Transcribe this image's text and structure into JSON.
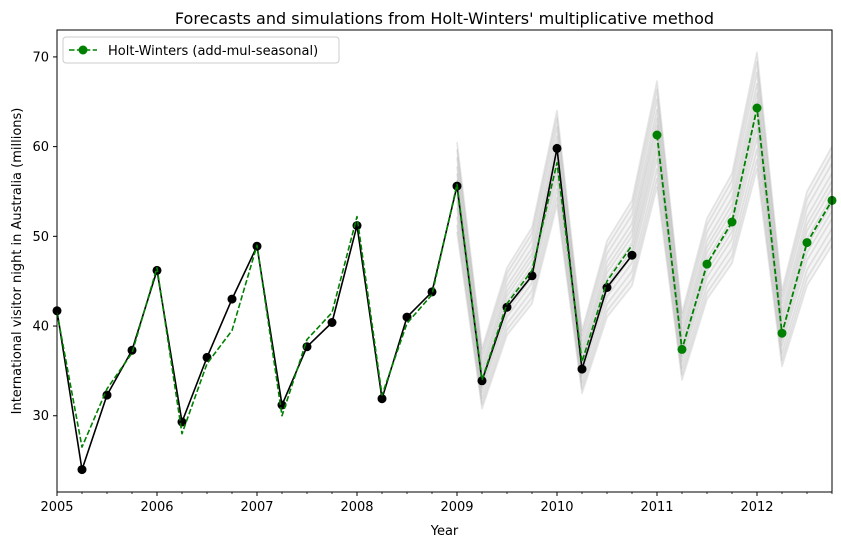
{
  "chart_data": {
    "type": "line",
    "title": "Forecasts and simulations from Holt-Winters' multiplicative method",
    "xlabel": "Year",
    "ylabel": "International visitor night in Australia (millions)",
    "xlim": [
      2005,
      2012.75
    ],
    "ylim": [
      21.5,
      73
    ],
    "x_ticks": [
      2005,
      2006,
      2007,
      2008,
      2009,
      2010,
      2011,
      2012
    ],
    "x_tick_labels": [
      "2005",
      "2006",
      "2007",
      "2008",
      "2009",
      "2010",
      "2011",
      "2012"
    ],
    "y_ticks": [
      30,
      40,
      50,
      60,
      70
    ],
    "y_tick_labels": [
      "30",
      "40",
      "50",
      "60",
      "70"
    ],
    "grid": false,
    "legend": {
      "placement": "top-left",
      "entries": [
        "Holt-Winters (add-mul-seasonal)"
      ]
    },
    "series": [
      {
        "role": "observed",
        "color": "#000000",
        "style": "solid-with-markers",
        "x": [
          2005,
          2005.25,
          2005.5,
          2005.75,
          2006,
          2006.25,
          2006.5,
          2006.75,
          2007,
          2007.25,
          2007.5,
          2007.75,
          2008,
          2008.25,
          2008.5,
          2008.75,
          2009,
          2009.25,
          2009.5,
          2009.75,
          2010,
          2010.25,
          2010.5,
          2010.75
        ],
        "values": [
          41.7,
          24.0,
          32.3,
          37.3,
          46.2,
          29.3,
          36.5,
          43.0,
          48.9,
          31.2,
          37.7,
          40.4,
          51.2,
          31.9,
          41.0,
          43.8,
          55.6,
          33.9,
          42.1,
          45.6,
          59.8,
          35.2,
          44.3,
          47.9
        ]
      },
      {
        "role": "fitted",
        "name": "Holt-Winters (add-mul-seasonal)",
        "color": "#008000",
        "style": "dashed",
        "x": [
          2005,
          2005.25,
          2005.5,
          2005.75,
          2006,
          2006.25,
          2006.5,
          2006.75,
          2007,
          2007.25,
          2007.5,
          2007.75,
          2008,
          2008.25,
          2008.5,
          2008.75,
          2009,
          2009.25,
          2009.5,
          2009.75,
          2010,
          2010.25,
          2010.5,
          2010.75
        ],
        "values": [
          41.5,
          26.5,
          33.0,
          37.0,
          46.5,
          28.0,
          35.8,
          39.5,
          49.0,
          30.0,
          38.5,
          41.5,
          52.2,
          32.3,
          40.3,
          43.5,
          55.8,
          34.0,
          42.5,
          46.2,
          58.2,
          36.0,
          45.0,
          49.0
        ]
      },
      {
        "role": "forecast",
        "color": "#008000",
        "style": "dashed-with-markers",
        "x": [
          2011,
          2011.25,
          2011.5,
          2011.75,
          2012,
          2012.25,
          2012.5,
          2012.75
        ],
        "values": [
          61.3,
          37.4,
          46.9,
          51.6,
          64.3,
          39.2,
          49.3,
          54.0
        ]
      },
      {
        "role": "simulation-envelope",
        "color": "#808080",
        "style": "faint-band",
        "x": [
          2009,
          2009.25,
          2009.5,
          2009.75,
          2010,
          2010.25,
          2010.5,
          2010.75,
          2011,
          2011.25,
          2011.5,
          2011.75,
          2012,
          2012.25,
          2012.5,
          2012.75
        ],
        "low": [
          50.5,
          30.8,
          39.0,
          42.5,
          53.5,
          32.5,
          41.0,
          44.5,
          55.5,
          34.0,
          43.0,
          47.0,
          57.5,
          35.5,
          44.5,
          49.0
        ],
        "high": [
          60.5,
          37.5,
          46.5,
          51.0,
          64.0,
          39.5,
          49.5,
          54.0,
          67.3,
          41.5,
          52.0,
          57.0,
          70.5,
          44.0,
          55.0,
          60.0
        ]
      }
    ]
  }
}
